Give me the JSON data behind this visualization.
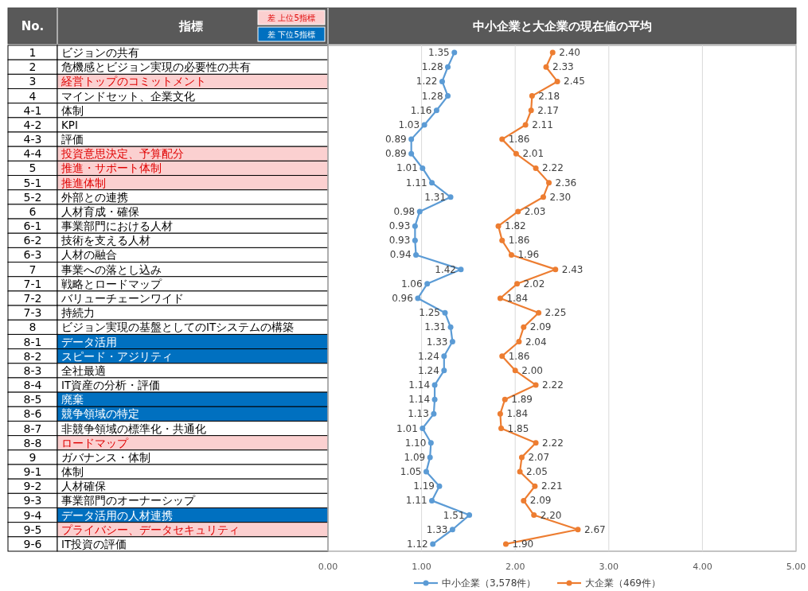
{
  "chart_data": {
    "type": "line",
    "orientation": "horizontal",
    "title": "中小企業と大企業の現在値の平均",
    "categories": [
      "ビジョンの共有",
      "危機感とビジョン実現の必要性の共有",
      "経営トップのコミットメント",
      "マインドセット、企業文化",
      "体制",
      "KPI",
      "評価",
      "投資意思決定、予算配分",
      "推進・サポート体制",
      "推進体制",
      "外部との連携",
      "人材育成・確保",
      "事業部門における人材",
      "技術を支える人材",
      "人材の融合",
      "事業への落とし込み",
      "戦略とロードマップ",
      "バリューチェーンワイド",
      "持続力",
      "ビジョン実現の基盤としてのITシステムの構築",
      "データ活用",
      "スピード・アジリティ",
      "全社最適",
      "IT資産の分析・評価",
      "廃棄",
      "競争領域の特定",
      "非競争領域の標準化・共通化",
      "ロードマップ",
      "ガバナンス・体制",
      "体制",
      "人材確保",
      "事業部門のオーナーシップ",
      "データ活用の人材連携",
      "プライバシー、データセキュリティ",
      "IT投資の評価"
    ],
    "colors": [
      null,
      null,
      "#fbd0d0",
      null,
      null,
      null,
      null,
      "#fbd0d0",
      "#fbd0d0",
      "#fbd0d0",
      null,
      null,
      null,
      null,
      null,
      null,
      null,
      null,
      null,
      null,
      "#0070c0",
      "#0070c0",
      null,
      null,
      "#0070c0",
      "#0070c0",
      null,
      "#fbd0d0",
      null,
      null,
      null,
      null,
      "#0070c0",
      "#fbd0d0",
      null
    ],
    "annotations": [
      "No.",
      "指標",
      "差 上位5指標",
      "差 下位5指標",
      "1",
      "2",
      "3",
      "4",
      "4-1",
      "4-2",
      "4-3",
      "4-4",
      "5",
      "5-1",
      "5-2",
      "6",
      "6-1",
      "6-2",
      "6-3",
      "7",
      "7-1",
      "7-2",
      "7-3",
      "8",
      "8-1",
      "8-2",
      "8-3",
      "8-4",
      "8-5",
      "8-6",
      "8-7",
      "8-8",
      "9",
      "9-1",
      "9-2",
      "9-3",
      "9-4",
      "9-5",
      "9-6"
    ],
    "series": [
      {
        "name": "中小企業（3,578件）",
        "color": "#5b9bd5",
        "values": [
          1.35,
          1.28,
          1.22,
          1.28,
          1.16,
          1.03,
          0.89,
          0.89,
          1.01,
          1.11,
          1.31,
          0.98,
          0.93,
          0.93,
          0.94,
          1.42,
          1.06,
          0.96,
          1.25,
          1.31,
          1.33,
          1.24,
          1.24,
          1.14,
          1.14,
          1.13,
          1.01,
          1.1,
          1.09,
          1.05,
          1.19,
          1.11,
          1.51,
          1.33,
          1.12
        ],
        "value_labels": [
          "1.35",
          "1.28",
          "1.22",
          "1.28",
          "1.16",
          "1.03",
          "0.89",
          "0.89",
          "1.01",
          "1.11",
          "1.31",
          "0.98",
          "0.93",
          "0.93",
          "0.94",
          "1.42",
          "1.06",
          "0.96",
          "1.25",
          "1.31",
          "1.33",
          "1.24",
          "1.24",
          "1.14",
          "1.14",
          "1.13",
          "1.01",
          "1.10",
          "1.09",
          "1.05",
          "1.19",
          "1.11",
          "1.51",
          "1.33",
          "1.12"
        ]
      },
      {
        "name": "大企業（469件）",
        "color": "#ed7d31",
        "values": [
          2.4,
          2.33,
          2.45,
          2.18,
          2.17,
          2.11,
          1.86,
          2.01,
          2.22,
          2.36,
          2.3,
          2.03,
          1.82,
          1.86,
          1.96,
          2.43,
          2.02,
          1.84,
          2.25,
          2.09,
          2.04,
          1.86,
          2.0,
          2.22,
          1.89,
          1.84,
          1.85,
          2.22,
          2.07,
          2.05,
          2.21,
          2.09,
          2.2,
          2.67,
          1.9
        ],
        "value_labels": [
          "2.40",
          "2.33",
          "2.45",
          "2.18",
          "2.17",
          "2.11",
          "1.86",
          "2.01",
          "2.22",
          "2.36",
          "2.30",
          "2.03",
          "1.82",
          "1.86",
          "1.96",
          "2.43",
          "2.02",
          "1.84",
          "2.25",
          "2.09",
          "2.04",
          "1.86",
          "2.00",
          "2.22",
          "1.89",
          "1.84",
          "1.85",
          "2.22",
          "2.07",
          "2.05",
          "2.21",
          "2.09",
          "2.20",
          "2.67",
          "1.90"
        ]
      }
    ],
    "xlim": [
      0,
      5
    ],
    "xticks": [
      {
        "value": 0,
        "label": "0.00"
      },
      {
        "value": 1,
        "label": "1.00"
      },
      {
        "value": 2,
        "label": "2.00"
      },
      {
        "value": 3,
        "label": "3.00"
      },
      {
        "value": 4,
        "label": "4.00"
      },
      {
        "value": 5,
        "label": "5.00"
      }
    ],
    "grid": "x",
    "marker": "circle",
    "line_style": "solid",
    "legend": "bottom"
  }
}
